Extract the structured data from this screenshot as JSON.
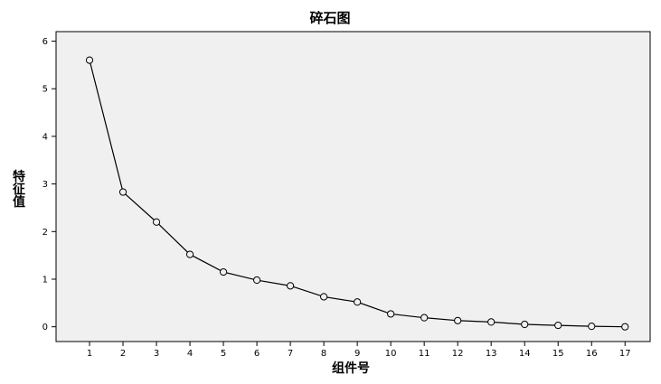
{
  "chart_data": {
    "type": "line",
    "title": "碎石图",
    "xlabel": "组件号",
    "ylabel": "特征值",
    "ylabel_chars": [
      "特",
      "征",
      "值"
    ],
    "x": [
      1,
      2,
      3,
      4,
      5,
      6,
      7,
      8,
      9,
      10,
      11,
      12,
      13,
      14,
      15,
      16,
      17
    ],
    "x_tick_labels": [
      "1",
      "2",
      "3",
      "4",
      "5",
      "6",
      "7",
      "8",
      "9",
      "10",
      "11",
      "12",
      "13",
      "14",
      "15",
      "16",
      "17"
    ],
    "y_tick_labels": [
      "0",
      "1",
      "2",
      "3",
      "4",
      "5",
      "6"
    ],
    "series": [
      {
        "values": [
          5.6,
          2.83,
          2.2,
          1.52,
          1.15,
          0.98,
          0.86,
          0.63,
          0.52,
          0.27,
          0.19,
          0.13,
          0.1,
          0.05,
          0.03,
          0.01,
          0.0
        ],
        "marker": "open-circle",
        "color": "#000000"
      }
    ],
    "xlim": [
      0,
      17.75
    ],
    "ylim": [
      -0.31,
      6.2
    ],
    "plot_background": "#f0f0f0",
    "grid": false,
    "legend": "none"
  }
}
